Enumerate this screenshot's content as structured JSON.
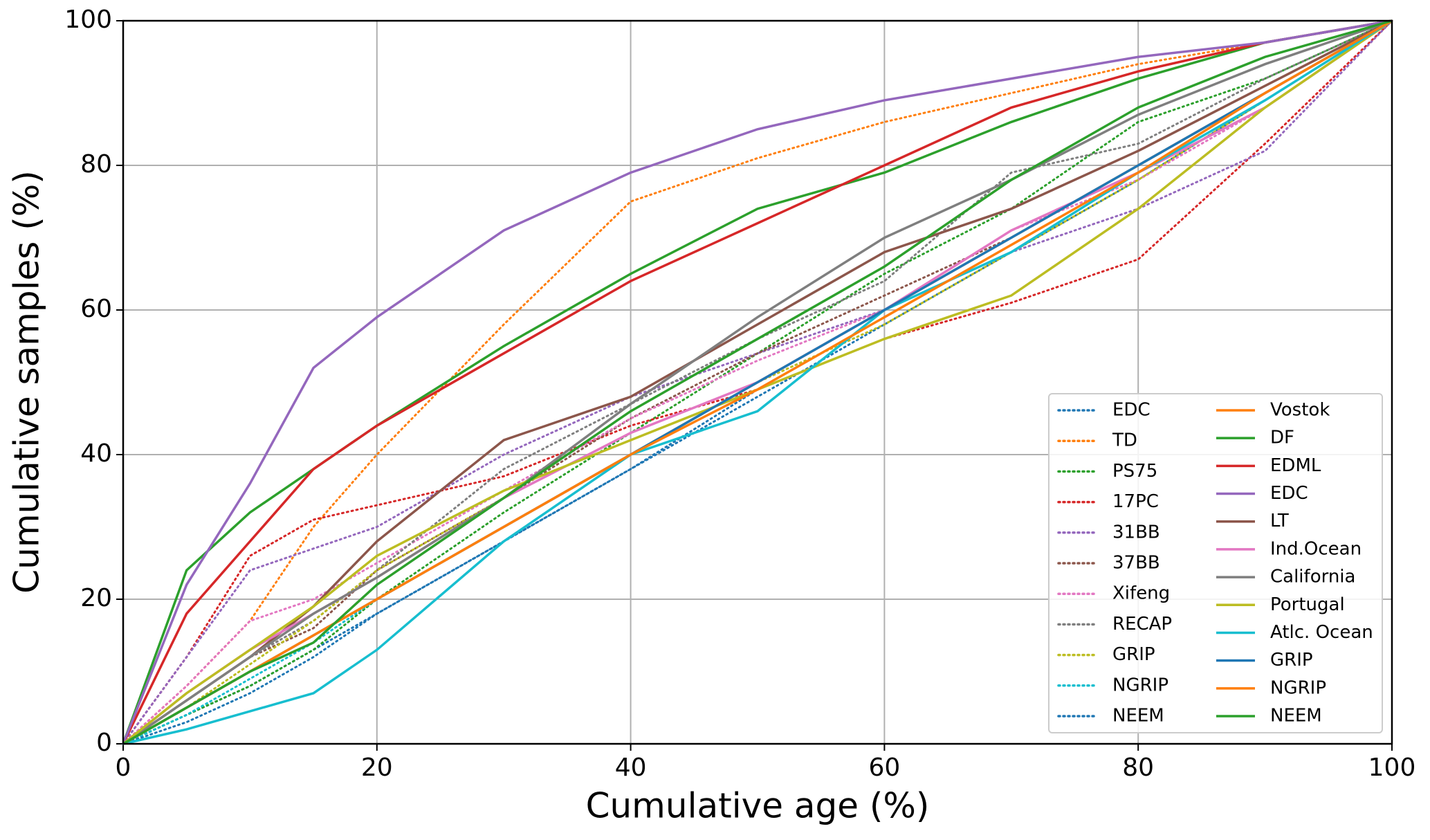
{
  "chart_data": {
    "type": "line",
    "xlabel": "Cumulative age (%)",
    "ylabel": "Cumulative samples  (%)",
    "xlim": [
      0,
      100
    ],
    "ylim": [
      0,
      100
    ],
    "xticks": [
      0,
      20,
      40,
      60,
      80,
      100
    ],
    "yticks": [
      0,
      20,
      40,
      60,
      80,
      100
    ],
    "grid": true,
    "legend": "lower right",
    "x": [
      0,
      5,
      10,
      15,
      20,
      30,
      40,
      50,
      60,
      70,
      80,
      90,
      100
    ],
    "series": [
      {
        "name": "EDC",
        "color": "#1f77b4",
        "linestyle": "dotted",
        "values": [
          0,
          4,
          8,
          13,
          18,
          28,
          38,
          48,
          58,
          68,
          78,
          89,
          100
        ]
      },
      {
        "name": "TD",
        "color": "#ff7f0e",
        "linestyle": "dotted",
        "values": [
          0,
          8,
          17,
          30,
          40,
          58,
          75,
          81,
          86,
          90,
          94,
          97,
          100
        ]
      },
      {
        "name": "PS75",
        "color": "#2ca02c",
        "linestyle": "dotted",
        "values": [
          0,
          4,
          8,
          13,
          20,
          32,
          43,
          54,
          65,
          74,
          86,
          92,
          100
        ]
      },
      {
        "name": "17PC",
        "color": "#d62728",
        "linestyle": "dotted",
        "values": [
          0,
          12,
          26,
          31,
          33,
          37,
          44,
          49,
          56,
          61,
          67,
          83,
          100
        ]
      },
      {
        "name": "31BB",
        "color": "#9467bd",
        "linestyle": "dotted",
        "values": [
          0,
          12,
          24,
          27,
          30,
          40,
          48,
          54,
          60,
          68,
          74,
          82,
          100
        ]
      },
      {
        "name": "37BB",
        "color": "#8c564b",
        "linestyle": "dotted",
        "values": [
          0,
          6,
          12,
          16,
          24,
          34,
          45,
          54,
          62,
          70,
          80,
          90,
          100
        ]
      },
      {
        "name": "Xifeng",
        "color": "#e377c2",
        "linestyle": "dotted",
        "values": [
          0,
          8,
          17,
          20,
          25,
          35,
          45,
          53,
          60,
          71,
          78,
          88,
          100
        ]
      },
      {
        "name": "RECAP",
        "color": "#7f7f7f",
        "linestyle": "dotted",
        "values": [
          0,
          6,
          12,
          17,
          24,
          38,
          47,
          56,
          64,
          79,
          83,
          92,
          100
        ]
      },
      {
        "name": "GRIP",
        "color": "#bcbd22",
        "linestyle": "dotted",
        "values": [
          0,
          5,
          11,
          17,
          24,
          34,
          43,
          50,
          58,
          68,
          78,
          89,
          100
        ]
      },
      {
        "name": "NGRIP",
        "color": "#17becf",
        "linestyle": "dotted",
        "values": [
          0,
          4,
          9,
          14,
          20,
          30,
          40,
          50,
          60,
          70,
          80,
          90,
          100
        ]
      },
      {
        "name": "NEEM",
        "color": "#1f77b4",
        "linestyle": "dotted",
        "values": [
          0,
          3,
          7,
          12,
          18,
          28,
          38,
          49,
          59,
          69,
          79,
          89,
          100
        ]
      },
      {
        "name": "Vostok",
        "color": "#ff7f0e",
        "linestyle": "solid",
        "values": [
          0,
          5,
          10,
          15,
          20,
          30,
          40,
          50,
          60,
          70,
          80,
          90,
          100
        ]
      },
      {
        "name": "DF",
        "color": "#2ca02c",
        "linestyle": "solid",
        "values": [
          0,
          24,
          32,
          38,
          44,
          55,
          65,
          74,
          79,
          86,
          92,
          97,
          100
        ]
      },
      {
        "name": "EDML",
        "color": "#d62728",
        "linestyle": "solid",
        "values": [
          0,
          18,
          28,
          38,
          44,
          54,
          64,
          72,
          80,
          88,
          93,
          97,
          100
        ]
      },
      {
        "name": "EDC",
        "color": "#9467bd",
        "linestyle": "solid",
        "values": [
          0,
          22,
          36,
          52,
          59,
          71,
          79,
          85,
          89,
          92,
          95,
          97,
          100
        ]
      },
      {
        "name": "LT",
        "color": "#8c564b",
        "linestyle": "solid",
        "values": [
          0,
          6,
          12,
          19,
          28,
          42,
          48,
          58,
          68,
          74,
          82,
          91,
          100
        ]
      },
      {
        "name": "Ind.Ocean",
        "color": "#e377c2",
        "linestyle": "solid",
        "values": [
          0,
          7,
          13,
          18,
          23,
          34,
          43,
          50,
          60,
          71,
          79,
          88,
          100
        ]
      },
      {
        "name": "California",
        "color": "#7f7f7f",
        "linestyle": "solid",
        "values": [
          0,
          6,
          12,
          18,
          23,
          34,
          47,
          59,
          70,
          78,
          87,
          94,
          100
        ]
      },
      {
        "name": "Portugal",
        "color": "#bcbd22",
        "linestyle": "solid",
        "values": [
          0,
          7,
          13,
          19,
          26,
          35,
          42,
          49,
          56,
          62,
          74,
          88,
          100
        ]
      },
      {
        "name": "Atlc. Ocean",
        "color": "#17becf",
        "linestyle": "solid",
        "values": [
          0,
          2,
          4.5,
          7,
          13,
          28,
          40,
          46,
          60,
          68,
          79,
          89,
          100
        ]
      },
      {
        "name": "GRIP",
        "color": "#1f77b4",
        "linestyle": "solid",
        "values": [
          0,
          5,
          10,
          15,
          20,
          30,
          40,
          50,
          60,
          70,
          80,
          90,
          100
        ]
      },
      {
        "name": "NGRIP",
        "color": "#ff7f0e",
        "linestyle": "solid",
        "values": [
          0,
          5,
          10,
          15,
          20,
          30,
          40,
          49,
          59,
          69,
          79,
          90,
          100
        ]
      },
      {
        "name": "NEEM",
        "color": "#2ca02c",
        "linestyle": "solid",
        "values": [
          0,
          5,
          10,
          14,
          22,
          34,
          46,
          56,
          66,
          78,
          88,
          95,
          100
        ]
      }
    ]
  }
}
